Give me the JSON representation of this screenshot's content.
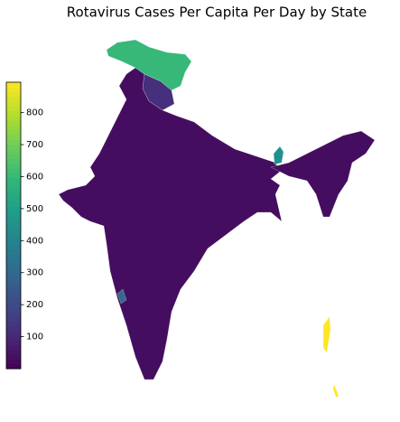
{
  "chart_data": {
    "type": "choropleth",
    "title": "Rotavirus Cases Per Capita Per Day by State",
    "values": [
      30,
      120,
      600,
      30,
      450,
      310,
      895,
      895
    ],
    "colormap": "viridis",
    "clim": [
      0,
      895
    ],
    "cticks": [
      100,
      200,
      300,
      400,
      500,
      600,
      700,
      800
    ]
  }
}
